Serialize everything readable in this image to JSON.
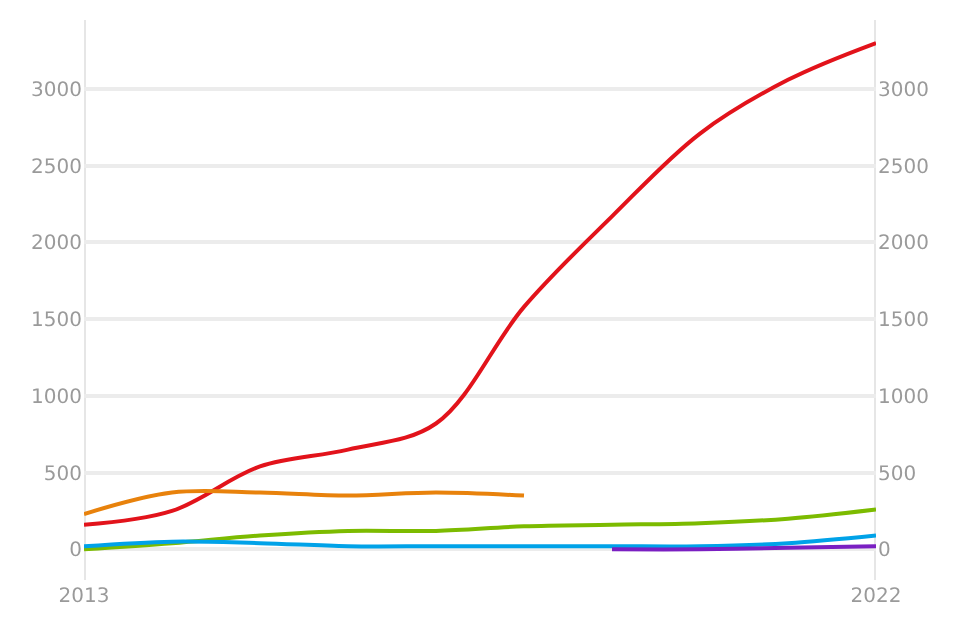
{
  "chart_data": {
    "type": "line",
    "x": [
      2013,
      2014,
      2015,
      2016,
      2017,
      2018,
      2019,
      2020,
      2021,
      2022
    ],
    "series": [
      {
        "color": "#e2131b",
        "values": [
          160,
          250,
          540,
          650,
          820,
          1580,
          2170,
          2710,
          3060,
          3300
        ]
      },
      {
        "color": "#e8820c",
        "values": [
          230,
          370,
          370,
          350,
          370,
          350,
          null,
          null,
          null,
          null
        ]
      },
      {
        "color": "#7cbb00",
        "values": [
          0,
          40,
          90,
          120,
          120,
          150,
          160,
          170,
          200,
          260
        ]
      },
      {
        "color": "#00a2e8",
        "values": [
          20,
          50,
          40,
          20,
          20,
          20,
          20,
          20,
          40,
          90
        ]
      },
      {
        "color": "#7a1fc2",
        "values": [
          null,
          null,
          null,
          null,
          null,
          null,
          0,
          0,
          10,
          20
        ]
      }
    ],
    "xlim": [
      2013,
      2022
    ],
    "xticks": [
      2013,
      2022
    ],
    "ylim": [
      -200,
      3450
    ],
    "yticks": [
      0,
      500,
      1000,
      1500,
      2000,
      2500,
      3000
    ],
    "y2lim": [
      -200,
      3450
    ],
    "y2ticks": [
      0,
      500,
      1000,
      1500,
      2000,
      2500,
      3000
    ],
    "grid": "y",
    "marker": "none",
    "line_style": "solid"
  }
}
